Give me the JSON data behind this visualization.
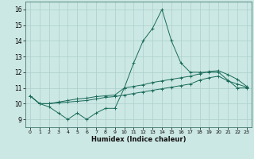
{
  "xlabel": "Humidex (Indice chaleur)",
  "bg_color": "#cce8e4",
  "grid_color": "#aacfcb",
  "line_color": "#1a6b5a",
  "xlim": [
    -0.5,
    23.5
  ],
  "ylim": [
    8.5,
    16.5
  ],
  "xticks": [
    0,
    1,
    2,
    3,
    4,
    5,
    6,
    7,
    8,
    9,
    10,
    11,
    12,
    13,
    14,
    15,
    16,
    17,
    18,
    19,
    20,
    21,
    22,
    23
  ],
  "yticks": [
    9,
    10,
    11,
    12,
    13,
    14,
    15,
    16
  ],
  "x": [
    0,
    1,
    2,
    3,
    4,
    5,
    6,
    7,
    8,
    9,
    10,
    11,
    12,
    13,
    14,
    15,
    16,
    17,
    18,
    19,
    20,
    21,
    22,
    23
  ],
  "line1": [
    10.5,
    10.0,
    9.8,
    9.4,
    9.0,
    9.4,
    9.0,
    9.4,
    9.7,
    9.7,
    11.0,
    12.6,
    14.0,
    14.8,
    16.0,
    14.0,
    12.6,
    12.0,
    12.0,
    12.0,
    12.0,
    11.5,
    11.0,
    11.0
  ],
  "line2": [
    10.5,
    10.0,
    10.0,
    10.1,
    10.2,
    10.3,
    10.35,
    10.45,
    10.5,
    10.55,
    11.0,
    11.1,
    11.2,
    11.35,
    11.45,
    11.55,
    11.65,
    11.75,
    11.9,
    12.05,
    12.1,
    11.85,
    11.55,
    11.1
  ],
  "line3": [
    10.5,
    10.0,
    10.0,
    10.05,
    10.1,
    10.15,
    10.2,
    10.3,
    10.4,
    10.45,
    10.55,
    10.65,
    10.75,
    10.85,
    10.95,
    11.05,
    11.15,
    11.25,
    11.5,
    11.65,
    11.75,
    11.45,
    11.25,
    11.05
  ]
}
